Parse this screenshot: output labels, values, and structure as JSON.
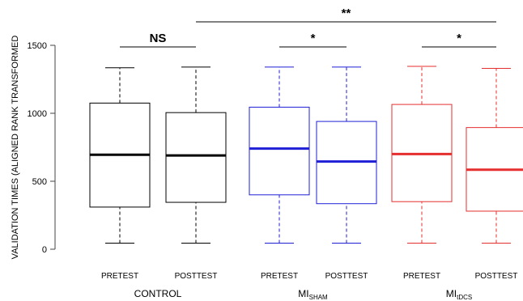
{
  "chart_data": {
    "type": "boxplot",
    "ylabel": "VALIDATION TIMES (ALIGNED RANK TRANSFORMED",
    "ylim": [
      0,
      1500
    ],
    "yticks": [
      0,
      500,
      1000,
      1500
    ],
    "grid": false,
    "groups": [
      {
        "name": "CONTROL",
        "name_sub": "",
        "color": "#000000"
      },
      {
        "name": "MI",
        "name_sub": "SHAM",
        "color": "#1f1fd6"
      },
      {
        "name": "MI",
        "name_sub": "tDCS",
        "color": "#e52e2e"
      }
    ],
    "boxes": [
      {
        "label": "PRETEST",
        "group": 0,
        "color": "#000000",
        "min": 45,
        "q1": 310,
        "median": 695,
        "q3": 1075,
        "max": 1335
      },
      {
        "label": "POSTTEST",
        "group": 0,
        "color": "#000000",
        "min": 45,
        "q1": 345,
        "median": 690,
        "q3": 1005,
        "max": 1340
      },
      {
        "label": "PRETEST",
        "group": 1,
        "color": "#1f1fd6",
        "min": 45,
        "q1": 400,
        "median": 740,
        "q3": 1045,
        "max": 1340
      },
      {
        "label": "POSTTEST",
        "group": 1,
        "color": "#1f1fd6",
        "min": 45,
        "q1": 335,
        "median": 645,
        "q3": 940,
        "max": 1340
      },
      {
        "label": "PRETEST",
        "group": 2,
        "color": "#e52e2e",
        "min": 45,
        "q1": 350,
        "median": 700,
        "q3": 1065,
        "max": 1345
      },
      {
        "label": "POSTTEST",
        "group": 2,
        "color": "#e52e2e",
        "min": 45,
        "q1": 280,
        "median": 585,
        "q3": 895,
        "max": 1330
      }
    ],
    "annotations": [
      {
        "text": "NS",
        "from": 0,
        "to": 1,
        "level": 1
      },
      {
        "text": "*",
        "from": 2,
        "to": 3,
        "level": 1
      },
      {
        "text": "*",
        "from": 4,
        "to": 5,
        "level": 1
      },
      {
        "text": "**",
        "from": 1,
        "to": 5,
        "level": 2
      }
    ]
  }
}
